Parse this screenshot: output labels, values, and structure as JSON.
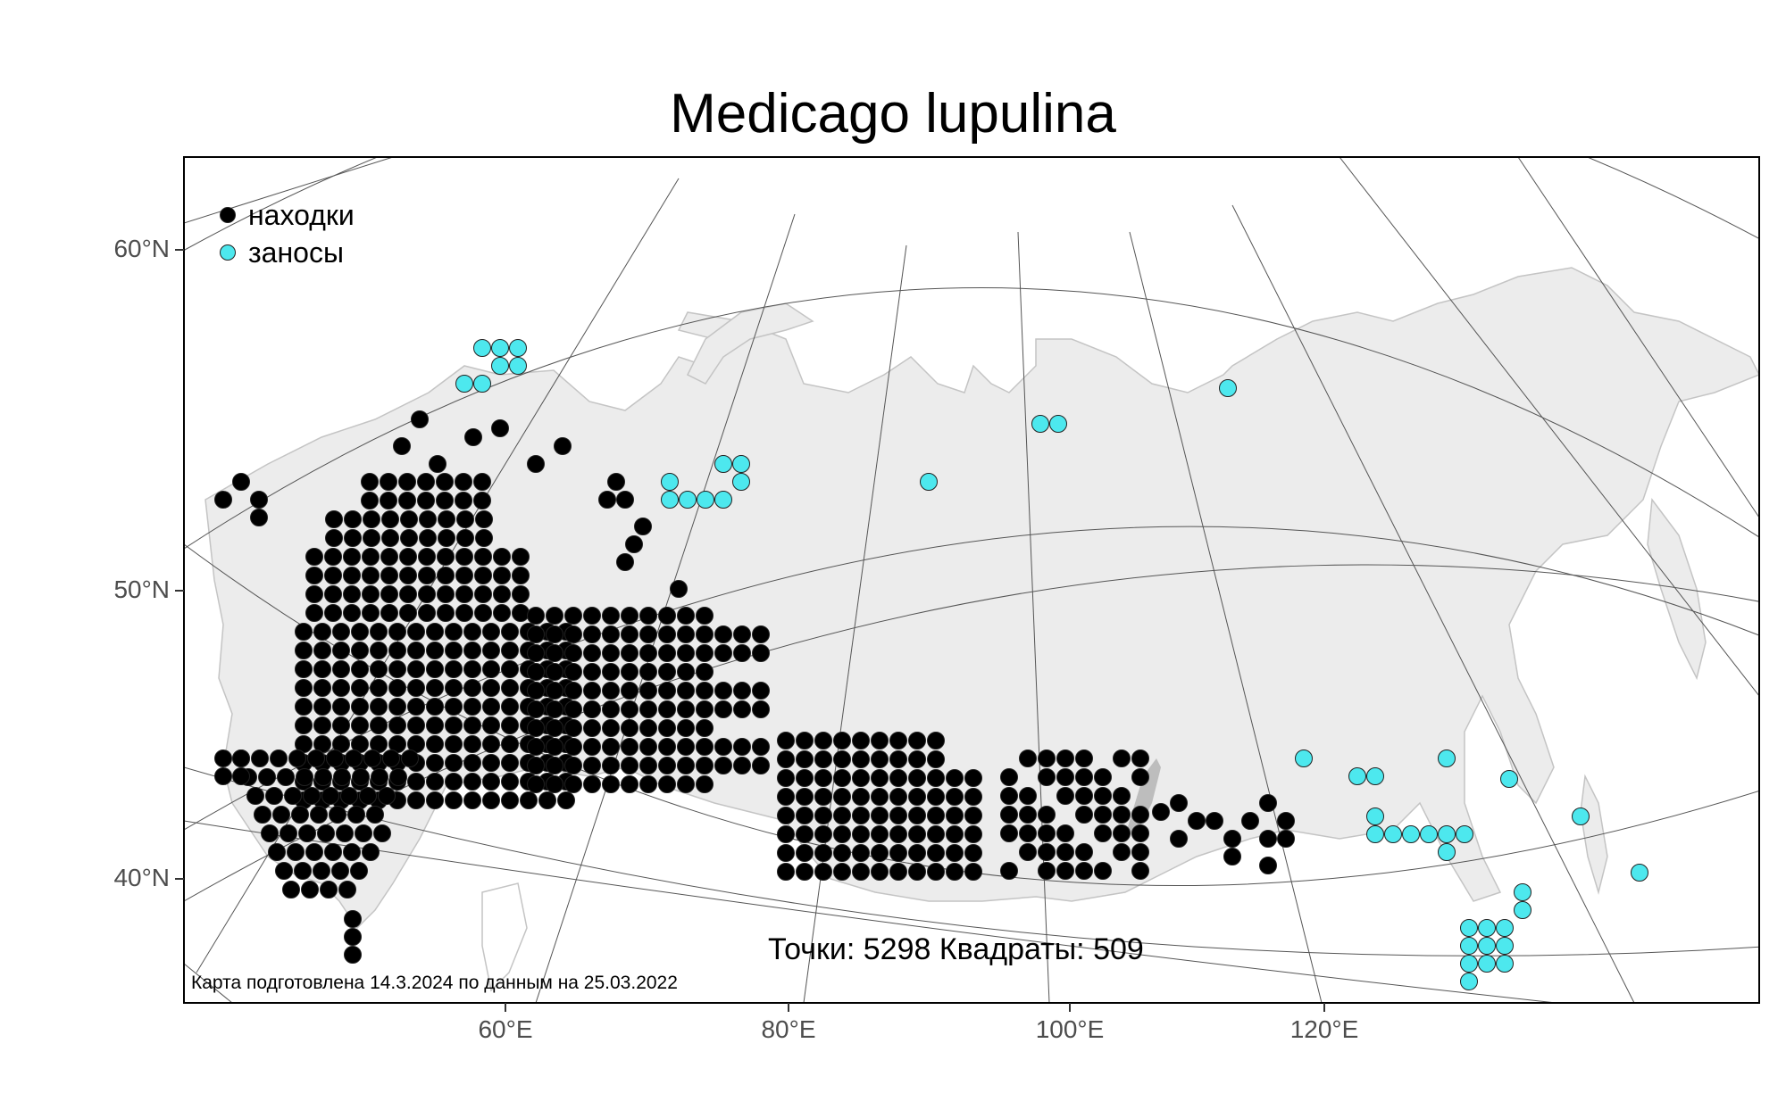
{
  "title": "Medicago lupulina",
  "legend": {
    "items": [
      {
        "label": "находки",
        "color": "#000000"
      },
      {
        "label": "заносы",
        "color": "#4de8ee"
      }
    ]
  },
  "stats": {
    "points_label": "Точки:",
    "points": "5298",
    "squares_label": "Квадраты:",
    "squares": "509"
  },
  "credit": "Карта подготовлена 14.3.2024 по данным на 25.03.2022",
  "axes": {
    "lat_labels": [
      "60°N",
      "50°N",
      "40°N"
    ],
    "lon_labels": [
      "60°E",
      "80°E",
      "100°E",
      "120°E"
    ]
  },
  "colors": {
    "land": "#ececec",
    "coast": "#bdbdbd",
    "graticule": "#555555",
    "native": "#000000",
    "introduced": "#4de8ee"
  }
}
